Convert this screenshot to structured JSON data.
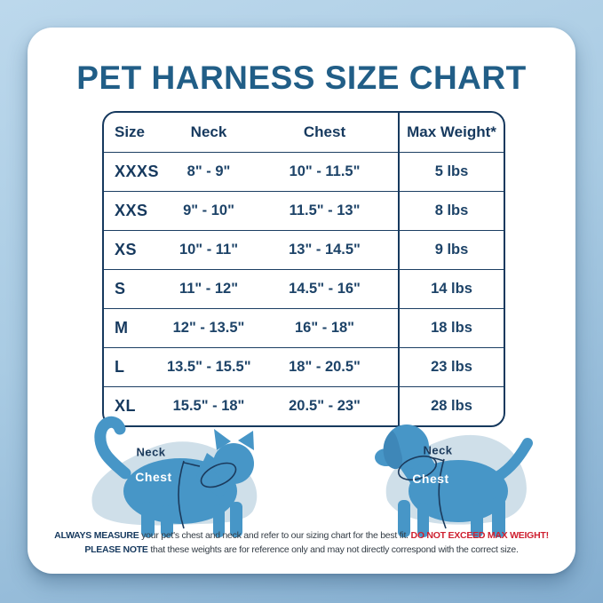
{
  "title": "PET HARNESS SIZE CHART",
  "table": {
    "columns": [
      "Size",
      "Neck",
      "Chest",
      "Max Weight*"
    ],
    "rows": [
      {
        "size": "XXXS",
        "neck": "8\" - 9\"",
        "chest": "10\" - 11.5\"",
        "max_weight": "5 lbs"
      },
      {
        "size": "XXS",
        "neck": "9\" - 10\"",
        "chest": "11.5\" - 13\"",
        "max_weight": "8 lbs"
      },
      {
        "size": "XS",
        "neck": "10\" - 11\"",
        "chest": "13\" - 14.5\"",
        "max_weight": "9 lbs"
      },
      {
        "size": "S",
        "neck": "11\" - 12\"",
        "chest": "14.5\" - 16\"",
        "max_weight": "14 lbs"
      },
      {
        "size": "M",
        "neck": "12\" - 13.5\"",
        "chest": "16\" - 18\"",
        "max_weight": "18 lbs"
      },
      {
        "size": "L",
        "neck": "13.5\" - 15.5\"",
        "chest": "18\" - 20.5\"",
        "max_weight": "23 lbs"
      },
      {
        "size": "XL",
        "neck": "15.5\" - 18\"",
        "chest": "20.5\" - 23\"",
        "max_weight": "28 lbs"
      }
    ]
  },
  "illustrations": {
    "cat": {
      "neck_label": "Neck",
      "chest_label": "Chest"
    },
    "dog": {
      "neck_label": "Neck",
      "chest_label": "Chest"
    }
  },
  "disclaimer": {
    "line1": [
      {
        "text": "ALWAYS MEASURE ",
        "style": "bold-navy"
      },
      {
        "text": "your pet's chest and neck and refer to our sizing chart for the best fit. ",
        "style": "regular"
      },
      {
        "text": "DO NOT EXCEED MAX WEIGHT!",
        "style": "bold-red"
      }
    ],
    "line2": [
      {
        "text": "PLEASE NOTE ",
        "style": "bold-navy"
      },
      {
        "text": "that these weights are for reference only and may not directly correspond with the correct size.",
        "style": "regular"
      }
    ]
  },
  "colors": {
    "background_top": "#bcd8ec",
    "background_bottom": "#84aed0",
    "card": "#ffffff",
    "title_blue": "#215e87",
    "table_navy": "#16395e",
    "value_navy": "#1d4368",
    "pet_blue": "#4796c7",
    "blob_gray_blue": "#cfdfe9",
    "harness_line": "#1b3a5c",
    "alert_red": "#cf2030"
  }
}
